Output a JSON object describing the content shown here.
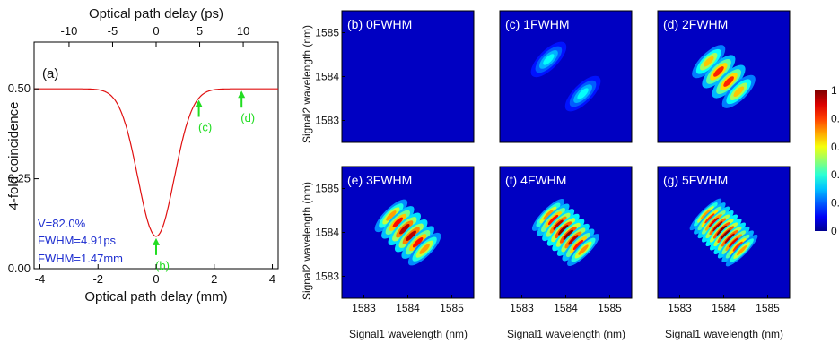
{
  "chart_data": [
    {
      "id": "a",
      "type": "line",
      "panel_label": "(a)",
      "xlabel": "Optical path delay (mm)",
      "x2label": "Optical path delay (ps)",
      "ylabel": "4-fold coincidence",
      "xlim": [
        -4.2,
        4.2
      ],
      "ylim": [
        0,
        0.63
      ],
      "x_ticks": [
        -4,
        -2,
        0,
        2,
        4
      ],
      "x_tick_labels": [
        "-4",
        "-2",
        "0",
        "2",
        "4"
      ],
      "x2_ticks": [
        -10,
        -5,
        0,
        5,
        10
      ],
      "x2_tick_labels": [
        "-10",
        "-5",
        "0",
        "5",
        "10"
      ],
      "ps_per_mm": 3.336,
      "y_ticks": [
        0,
        0.25,
        0.5
      ],
      "y_tick_labels": [
        "0.00",
        "0.25",
        "0.50"
      ],
      "line_color": "#e01010",
      "series": [
        {
          "baseline": 0.5,
          "dip_depth": 0.41,
          "fwhm_mm": 1.47
        }
      ],
      "annotations": [
        {
          "text": "V=82.0%",
          "color": "#1f2fd0"
        },
        {
          "text": "FWHM=4.91ps",
          "color": "#1f2fd0"
        },
        {
          "text": "FWHM=1.47mm",
          "color": "#1f2fd0"
        }
      ],
      "markers": [
        {
          "label": "(b)",
          "x": 0.0,
          "color": "#22dd22"
        },
        {
          "label": "(c)",
          "x": 1.47,
          "color": "#22dd22"
        },
        {
          "label": "(d)",
          "x": 2.94,
          "color": "#22dd22"
        }
      ]
    },
    {
      "type": "heatmap",
      "xlabel": "Signal1 wavelength (nm)",
      "ylabel": "Signal2 wavelength (nm)",
      "xlim": [
        1582.5,
        1585.5
      ],
      "ylim": [
        1582.5,
        1585.5
      ],
      "x_ticks": [
        1583,
        1584,
        1585
      ],
      "x_tick_labels": [
        "1583",
        "1584",
        "1585"
      ],
      "y_ticks": [
        1583,
        1584,
        1585
      ],
      "y_tick_labels": [
        "1583",
        "1584",
        "1585"
      ],
      "panels": [
        {
          "id": "b",
          "label": "(b) 0FWHM",
          "delay_fwhm": 0,
          "fringes": 0,
          "peak": 0.0
        },
        {
          "id": "c",
          "label": "(c) 1FWHM",
          "delay_fwhm": 1,
          "fringes": 1,
          "peak": 0.5
        },
        {
          "id": "d",
          "label": "(d) 2FWHM",
          "delay_fwhm": 2,
          "fringes": 2,
          "peak": 0.85
        },
        {
          "id": "e",
          "label": "(e) 3FWHM",
          "delay_fwhm": 3,
          "fringes": 3,
          "peak": 0.95
        },
        {
          "id": "f",
          "label": "(f) 4FWHM",
          "delay_fwhm": 4,
          "fringes": 4,
          "peak": 1.0
        },
        {
          "id": "g",
          "label": "(g) 5FWHM",
          "delay_fwhm": 5,
          "fringes": 5,
          "peak": 1.0
        }
      ],
      "colorbar": {
        "min": 0,
        "max": 1,
        "ticks": [
          0,
          0.2,
          0.4,
          0.6,
          0.8,
          1
        ],
        "tick_labels": [
          "0",
          "0.",
          "0.",
          "0.",
          "0.",
          "1"
        ]
      }
    }
  ]
}
